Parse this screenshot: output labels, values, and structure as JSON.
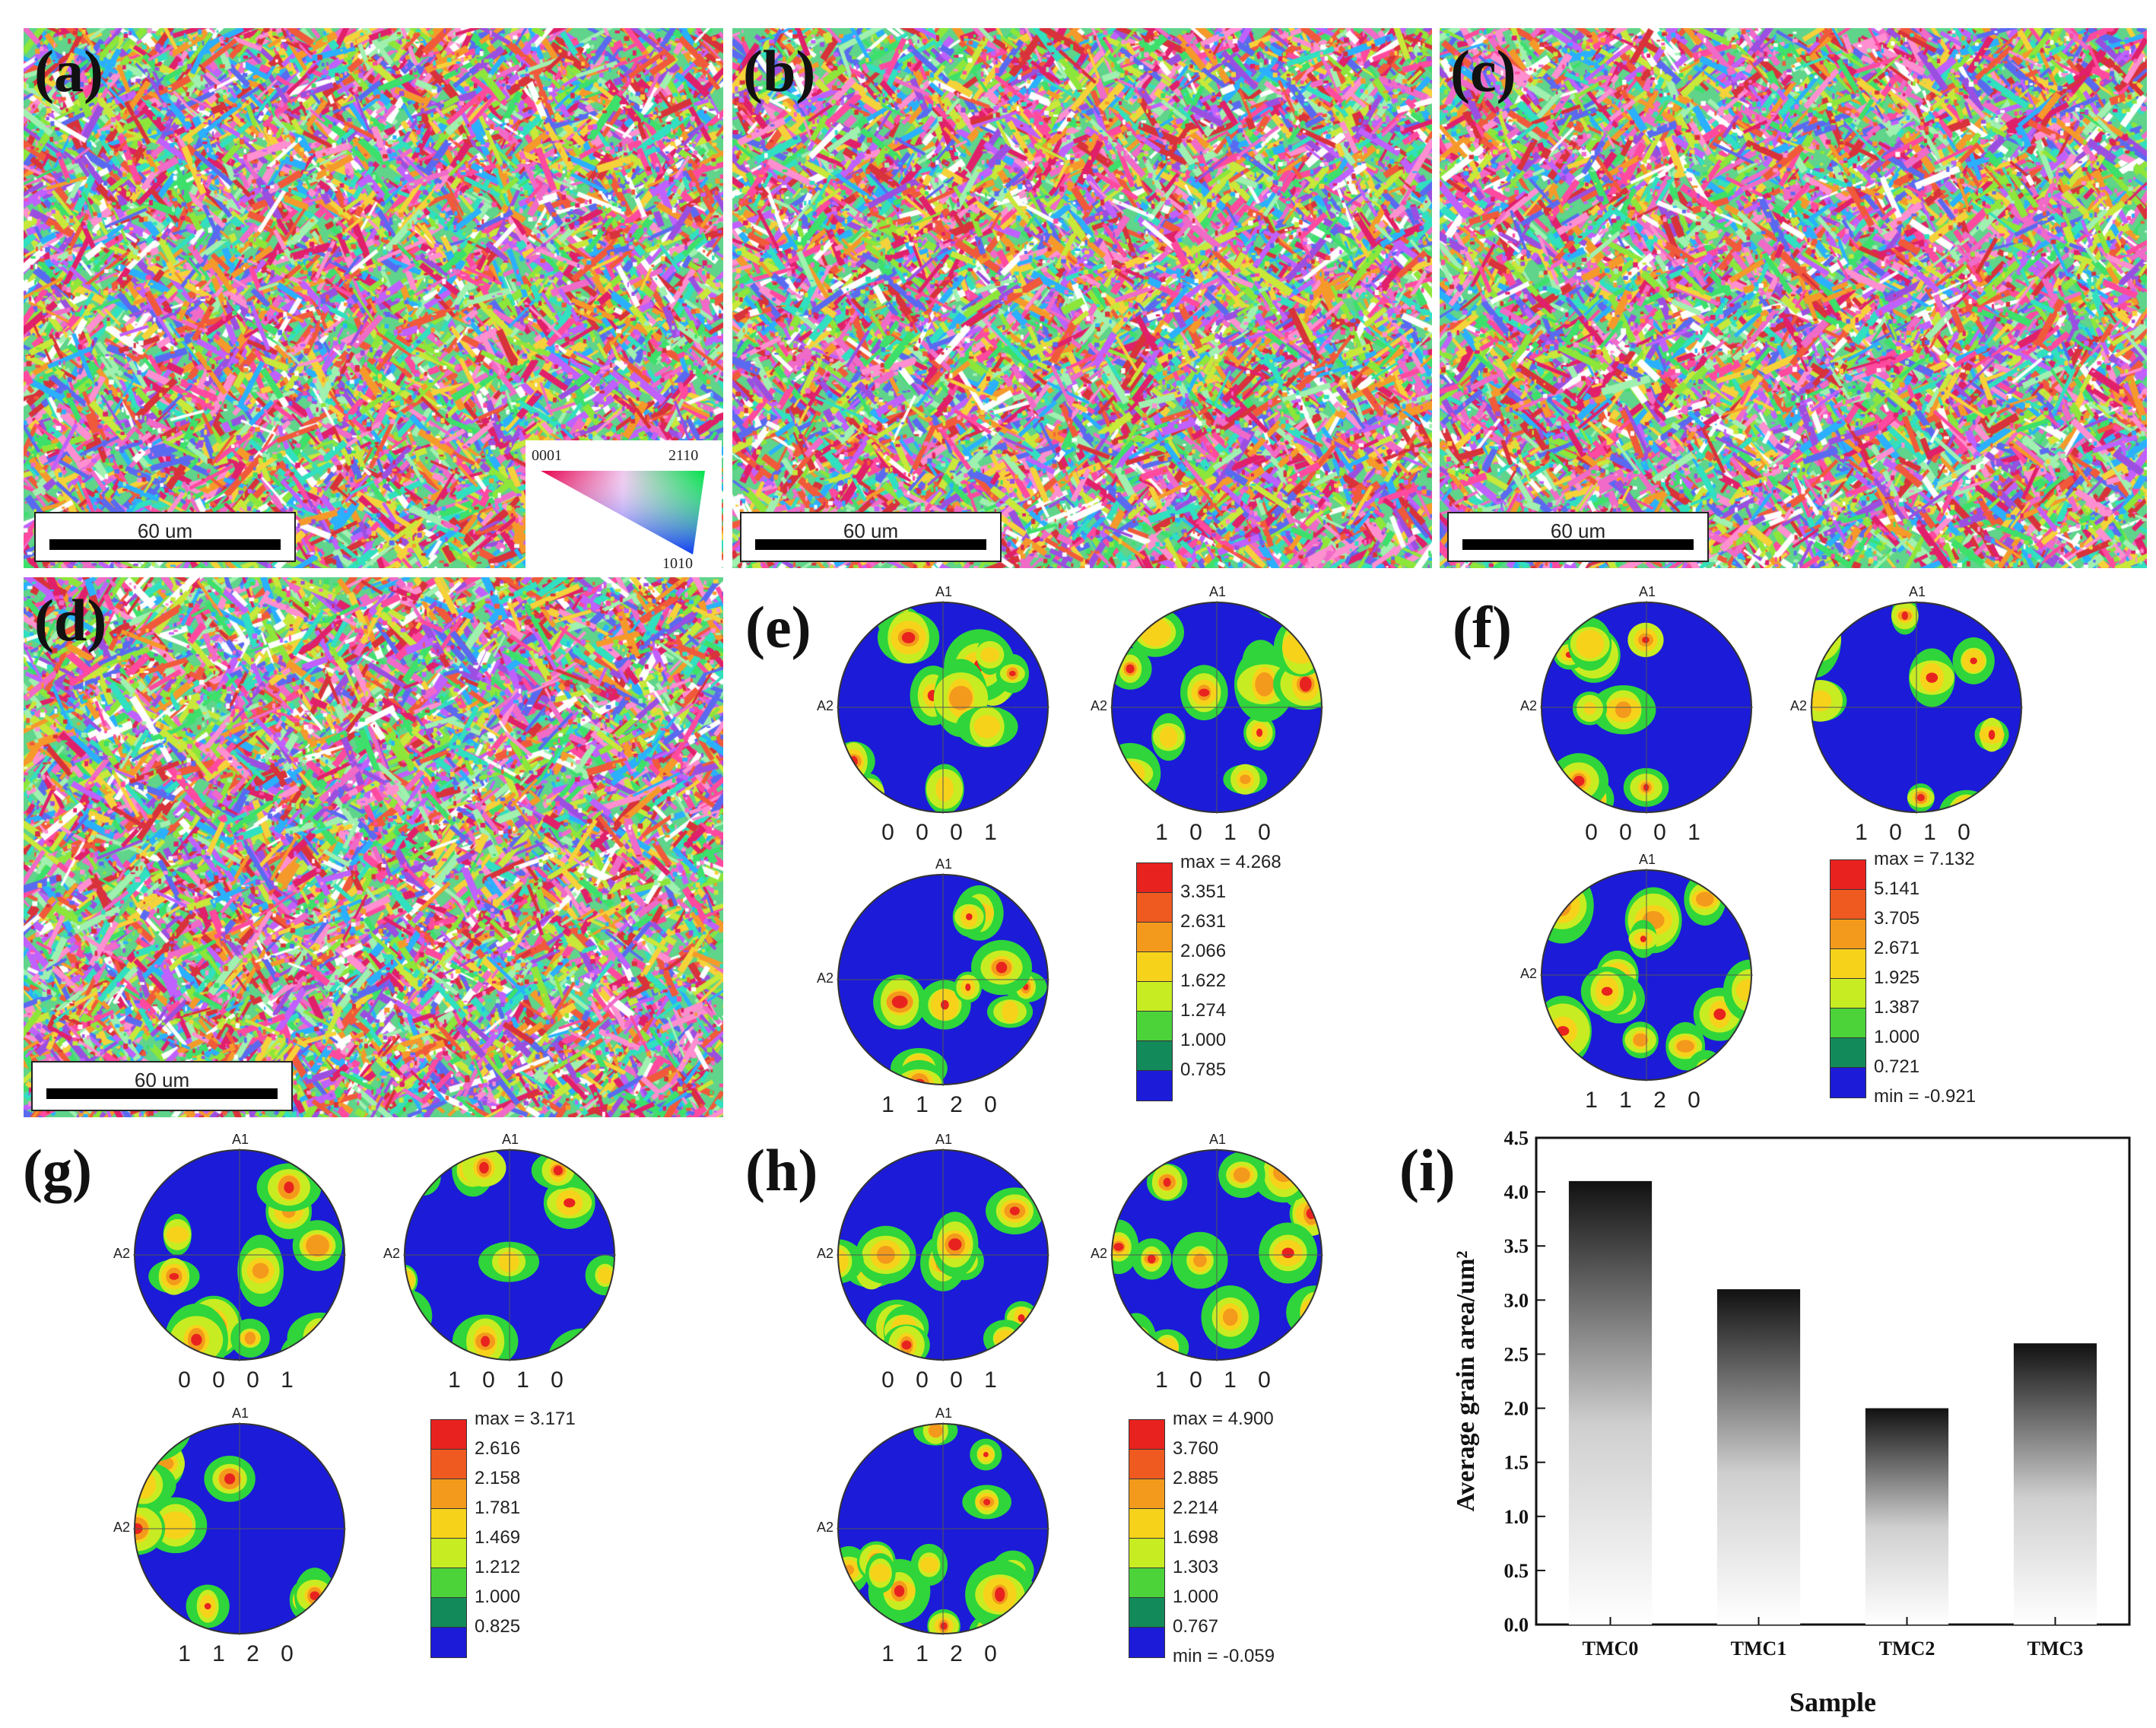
{
  "panels": {
    "a": "(a)",
    "b": "(b)",
    "c": "(c)",
    "d": "(d)",
    "e": "(e)",
    "f": "(f)",
    "g": "(g)",
    "h": "(h)",
    "i": "(i)"
  },
  "scale_bar": "60 um",
  "ipf_key": {
    "top_left": "0001",
    "top_right": "2110",
    "bottom": "1010"
  },
  "pole_figure_axes": {
    "top": "A1",
    "left": "A2"
  },
  "pole_figure_planes": [
    "0 0 0 1",
    "1 0 1 0",
    "1 1 2 0"
  ],
  "legends": {
    "e": [
      "max = 4.268",
      "3.351",
      "2.631",
      "2.066",
      "1.622",
      "1.274",
      "1.000",
      "0.785"
    ],
    "f": [
      "max = 7.132",
      "5.141",
      "3.705",
      "2.671",
      "1.925",
      "1.387",
      "1.000",
      "0.721",
      "min = -0.921"
    ],
    "g": [
      "max = 3.171",
      "2.616",
      "2.158",
      "1.781",
      "1.469",
      "1.212",
      "1.000",
      "0.825"
    ],
    "h": [
      "max = 4.900",
      "3.760",
      "2.885",
      "2.214",
      "1.698",
      "1.303",
      "1.000",
      "0.767",
      "min = -0.059"
    ]
  },
  "legend_colors": [
    "#e8231f",
    "#ef5a20",
    "#f39a1c",
    "#f7d21a",
    "#c8ec22",
    "#4cd33a",
    "#138a5a",
    "#1b1bd8"
  ],
  "chart_data": {
    "type": "bar",
    "categories": [
      "TMC0",
      "TMC1",
      "TMC2",
      "TMC3"
    ],
    "values": [
      4.1,
      3.1,
      2.0,
      2.6
    ],
    "xlabel": "Sample",
    "ylabel": "Average grain area/um²",
    "ylim": [
      0,
      4.5
    ],
    "yticks": [
      "0.0",
      "0.5",
      "1.0",
      "1.5",
      "2.0",
      "2.5",
      "3.0",
      "3.5",
      "4.0",
      "4.5"
    ],
    "grid": false,
    "bar_fill": "vertical gradient black to white"
  }
}
